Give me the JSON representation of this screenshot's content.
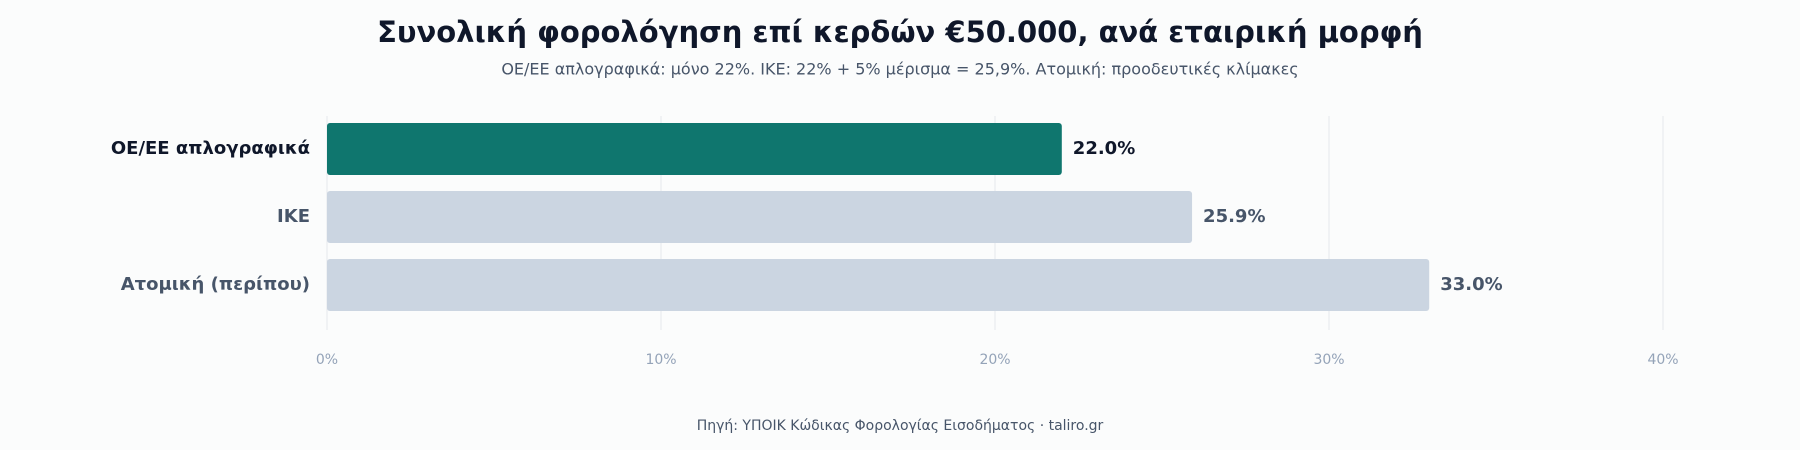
{
  "chart_data": {
    "type": "hbar",
    "title": "Συνολική φορολόγηση επί κερδών €50.000, ανά εταιρική μορφή",
    "subtitle": "ΟΕ/ΕΕ απλογραφικά: μόνο 22%. ΙΚΕ: 22% + 5% μέρισμα = 25,9%. Ατομική: προοδευτικές κλίμακες",
    "source": "Πηγή: ΥΠΟΙΚ Κώδικας Φορολογίας Εισοδήματος · taliro.gr",
    "categories": [
      "ΟΕ/ΕΕ απλογραφικά",
      "ΙΚΕ",
      "Ατομική (περίπου)"
    ],
    "values": [
      22.0,
      25.9,
      33.0
    ],
    "value_labels": [
      "22.0%",
      "25.9%",
      "33.0%"
    ],
    "colors": [
      "#0f766e",
      "#cbd5e1",
      "#cbd5e1"
    ],
    "xlim": [
      0,
      40
    ],
    "xticks": [
      {
        "value": 0,
        "label": "0%"
      },
      {
        "value": 10,
        "label": "10%"
      },
      {
        "value": 20,
        "label": "20%"
      },
      {
        "value": 30,
        "label": "30%"
      },
      {
        "value": 40,
        "label": "40%"
      }
    ],
    "grid": true
  }
}
